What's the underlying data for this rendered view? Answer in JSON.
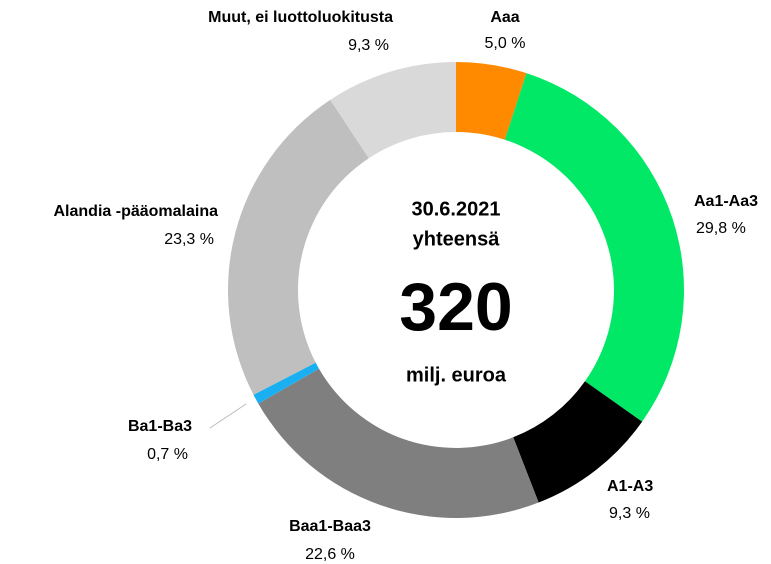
{
  "chart_data": {
    "type": "pie",
    "categories": [
      "Aaa",
      "Aa1-Aa3",
      "A1-A3",
      "Baa1-Baa3",
      "Ba1-Ba3",
      "Alandia -pääomalaina",
      "Muut, ei luottoluokitusta"
    ],
    "values": [
      5.0,
      29.8,
      9.3,
      22.6,
      0.7,
      23.3,
      9.3
    ],
    "value_labels": [
      "5,0 %",
      "29,8 %",
      "9,3 %",
      "22,6 %",
      "0,7 %",
      "23,3 %",
      "9,3 %"
    ],
    "colors": [
      "#ff8a00",
      "#00e865",
      "#000000",
      "#7f7f7f",
      "#1aaff0",
      "#bfbfbf",
      "#d9d9d9"
    ],
    "center_text": [
      "30.6.2021",
      "yhteensä",
      "320",
      "milj. euroa"
    ]
  }
}
